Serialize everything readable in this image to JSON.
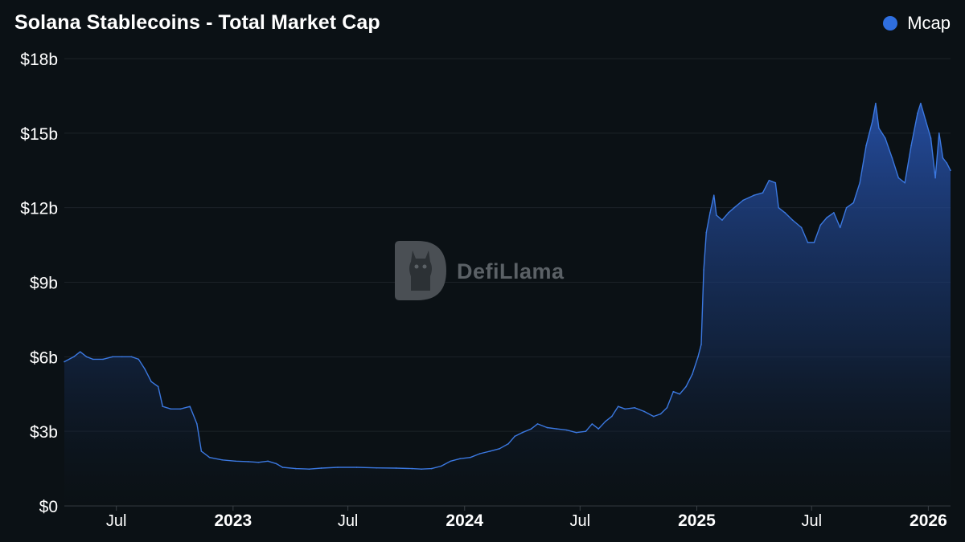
{
  "title": "Solana Stablecoins - Total Market Cap",
  "watermark": "DefiLlama",
  "legend": {
    "label": "Mcap",
    "color": "#2f6fe0"
  },
  "chart_data": {
    "type": "area",
    "title": "Solana Stablecoins - Total Market Cap",
    "series_name": "Mcap",
    "color": "#3b78e0",
    "ylim": [
      0,
      18
    ],
    "yticks": [
      {
        "value": 0,
        "label": "$0"
      },
      {
        "value": 3,
        "label": "$3b"
      },
      {
        "value": 6,
        "label": "$6b"
      },
      {
        "value": 9,
        "label": "$9b"
      },
      {
        "value": 12,
        "label": "$12b"
      },
      {
        "value": 15,
        "label": "$15b"
      },
      {
        "value": 18,
        "label": "$18b"
      }
    ],
    "xlim": [
      "2022-04-10",
      "2026-02-05"
    ],
    "xticks": [
      {
        "date": "2022-07-01",
        "label": "Jul",
        "year": false
      },
      {
        "date": "2023-01-01",
        "label": "2023",
        "year": true
      },
      {
        "date": "2023-07-01",
        "label": "Jul",
        "year": false
      },
      {
        "date": "2024-01-01",
        "label": "2024",
        "year": true
      },
      {
        "date": "2024-07-01",
        "label": "Jul",
        "year": false
      },
      {
        "date": "2025-01-01",
        "label": "2025",
        "year": true
      },
      {
        "date": "2025-07-01",
        "label": "Jul",
        "year": false
      },
      {
        "date": "2026-01-01",
        "label": "2026",
        "year": true
      }
    ],
    "points": [
      [
        "2022-04-10",
        5.8
      ],
      [
        "2022-04-25",
        6.0
      ],
      [
        "2022-05-05",
        6.2
      ],
      [
        "2022-05-15",
        6.0
      ],
      [
        "2022-05-25",
        5.9
      ],
      [
        "2022-06-10",
        5.9
      ],
      [
        "2022-06-25",
        6.0
      ],
      [
        "2022-07-10",
        6.0
      ],
      [
        "2022-07-25",
        6.0
      ],
      [
        "2022-08-05",
        5.9
      ],
      [
        "2022-08-15",
        5.5
      ],
      [
        "2022-08-25",
        5.0
      ],
      [
        "2022-09-05",
        4.8
      ],
      [
        "2022-09-12",
        4.0
      ],
      [
        "2022-09-25",
        3.9
      ],
      [
        "2022-10-10",
        3.9
      ],
      [
        "2022-10-25",
        4.0
      ],
      [
        "2022-11-05",
        3.3
      ],
      [
        "2022-11-12",
        2.2
      ],
      [
        "2022-11-25",
        1.95
      ],
      [
        "2022-12-15",
        1.85
      ],
      [
        "2023-01-05",
        1.8
      ],
      [
        "2023-01-25",
        1.78
      ],
      [
        "2023-02-10",
        1.75
      ],
      [
        "2023-02-25",
        1.8
      ],
      [
        "2023-03-10",
        1.7
      ],
      [
        "2023-03-20",
        1.55
      ],
      [
        "2023-04-10",
        1.5
      ],
      [
        "2023-05-01",
        1.48
      ],
      [
        "2023-05-20",
        1.52
      ],
      [
        "2023-06-15",
        1.55
      ],
      [
        "2023-07-15",
        1.55
      ],
      [
        "2023-08-15",
        1.53
      ],
      [
        "2023-09-15",
        1.52
      ],
      [
        "2023-10-10",
        1.5
      ],
      [
        "2023-10-25",
        1.48
      ],
      [
        "2023-11-10",
        1.5
      ],
      [
        "2023-11-25",
        1.6
      ],
      [
        "2023-12-10",
        1.8
      ],
      [
        "2023-12-25",
        1.9
      ],
      [
        "2024-01-10",
        1.95
      ],
      [
        "2024-01-25",
        2.1
      ],
      [
        "2024-02-10",
        2.2
      ],
      [
        "2024-02-25",
        2.3
      ],
      [
        "2024-03-10",
        2.5
      ],
      [
        "2024-03-20",
        2.8
      ],
      [
        "2024-04-01",
        2.95
      ],
      [
        "2024-04-15",
        3.1
      ],
      [
        "2024-04-25",
        3.3
      ],
      [
        "2024-05-10",
        3.15
      ],
      [
        "2024-05-25",
        3.1
      ],
      [
        "2024-06-10",
        3.05
      ],
      [
        "2024-06-25",
        2.95
      ],
      [
        "2024-07-10",
        3.0
      ],
      [
        "2024-07-20",
        3.3
      ],
      [
        "2024-07-30",
        3.1
      ],
      [
        "2024-08-10",
        3.4
      ],
      [
        "2024-08-20",
        3.6
      ],
      [
        "2024-08-30",
        4.0
      ],
      [
        "2024-09-10",
        3.9
      ],
      [
        "2024-09-25",
        3.95
      ],
      [
        "2024-10-10",
        3.8
      ],
      [
        "2024-10-25",
        3.6
      ],
      [
        "2024-11-05",
        3.7
      ],
      [
        "2024-11-15",
        3.95
      ],
      [
        "2024-11-25",
        4.6
      ],
      [
        "2024-12-05",
        4.5
      ],
      [
        "2024-12-15",
        4.8
      ],
      [
        "2024-12-25",
        5.3
      ],
      [
        "2025-01-03",
        6.0
      ],
      [
        "2025-01-08",
        6.5
      ],
      [
        "2025-01-12",
        9.5
      ],
      [
        "2025-01-16",
        11.0
      ],
      [
        "2025-01-22",
        11.8
      ],
      [
        "2025-01-28",
        12.5
      ],
      [
        "2025-02-01",
        11.7
      ],
      [
        "2025-02-10",
        11.5
      ],
      [
        "2025-02-20",
        11.8
      ],
      [
        "2025-03-01",
        12.0
      ],
      [
        "2025-03-15",
        12.3
      ],
      [
        "2025-04-01",
        12.5
      ],
      [
        "2025-04-15",
        12.6
      ],
      [
        "2025-04-25",
        13.1
      ],
      [
        "2025-05-05",
        13.0
      ],
      [
        "2025-05-10",
        12.0
      ],
      [
        "2025-05-20",
        11.8
      ],
      [
        "2025-06-01",
        11.5
      ],
      [
        "2025-06-15",
        11.2
      ],
      [
        "2025-06-25",
        10.6
      ],
      [
        "2025-07-05",
        10.6
      ],
      [
        "2025-07-15",
        11.3
      ],
      [
        "2025-07-25",
        11.6
      ],
      [
        "2025-08-05",
        11.8
      ],
      [
        "2025-08-15",
        11.2
      ],
      [
        "2025-08-25",
        12.0
      ],
      [
        "2025-09-05",
        12.2
      ],
      [
        "2025-09-15",
        13.0
      ],
      [
        "2025-09-25",
        14.5
      ],
      [
        "2025-10-05",
        15.5
      ],
      [
        "2025-10-10",
        16.2
      ],
      [
        "2025-10-15",
        15.2
      ],
      [
        "2025-10-25",
        14.8
      ],
      [
        "2025-11-05",
        14.0
      ],
      [
        "2025-11-15",
        13.2
      ],
      [
        "2025-11-25",
        13.0
      ],
      [
        "2025-12-05",
        14.5
      ],
      [
        "2025-12-15",
        15.8
      ],
      [
        "2025-12-20",
        16.2
      ],
      [
        "2025-12-28",
        15.5
      ],
      [
        "2026-01-05",
        14.8
      ],
      [
        "2026-01-12",
        13.2
      ],
      [
        "2026-01-18",
        15.0
      ],
      [
        "2026-01-24",
        14.0
      ],
      [
        "2026-01-30",
        13.8
      ],
      [
        "2026-02-05",
        13.5
      ]
    ]
  }
}
